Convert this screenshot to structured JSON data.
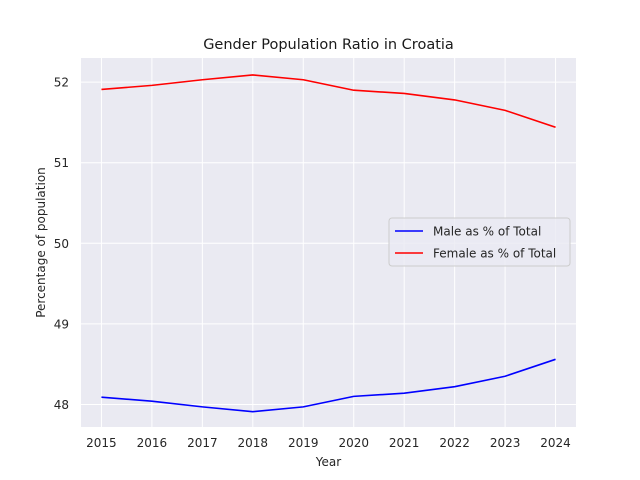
{
  "chart_data": {
    "type": "line",
    "title": "Gender Population Ratio in Croatia",
    "xlabel": "Year",
    "ylabel": "Percentage of population",
    "x": [
      2015,
      2016,
      2017,
      2018,
      2019,
      2020,
      2021,
      2022,
      2023,
      2024
    ],
    "x_tick_labels": [
      "2015",
      "2016",
      "2017",
      "2018",
      "2019",
      "2020",
      "2021",
      "2022",
      "2023",
      "2024"
    ],
    "y_ticks": [
      48,
      49,
      50,
      51,
      52
    ],
    "y_tick_labels": [
      "48",
      "49",
      "50",
      "51",
      "52"
    ],
    "ylim": [
      47.72,
      52.3
    ],
    "grid": true,
    "legend_position": "center-right",
    "series": [
      {
        "name": "Male as % of Total",
        "color": "#0000ff",
        "values": [
          48.09,
          48.04,
          47.97,
          47.91,
          47.97,
          48.1,
          48.14,
          48.22,
          48.35,
          48.56
        ]
      },
      {
        "name": "Female as % of Total",
        "color": "#ff0000",
        "values": [
          51.91,
          51.96,
          52.03,
          52.09,
          52.03,
          51.9,
          51.86,
          51.78,
          51.65,
          51.44
        ]
      }
    ],
    "plot_background": "#eaeaf2",
    "grid_color": "#ffffff"
  }
}
